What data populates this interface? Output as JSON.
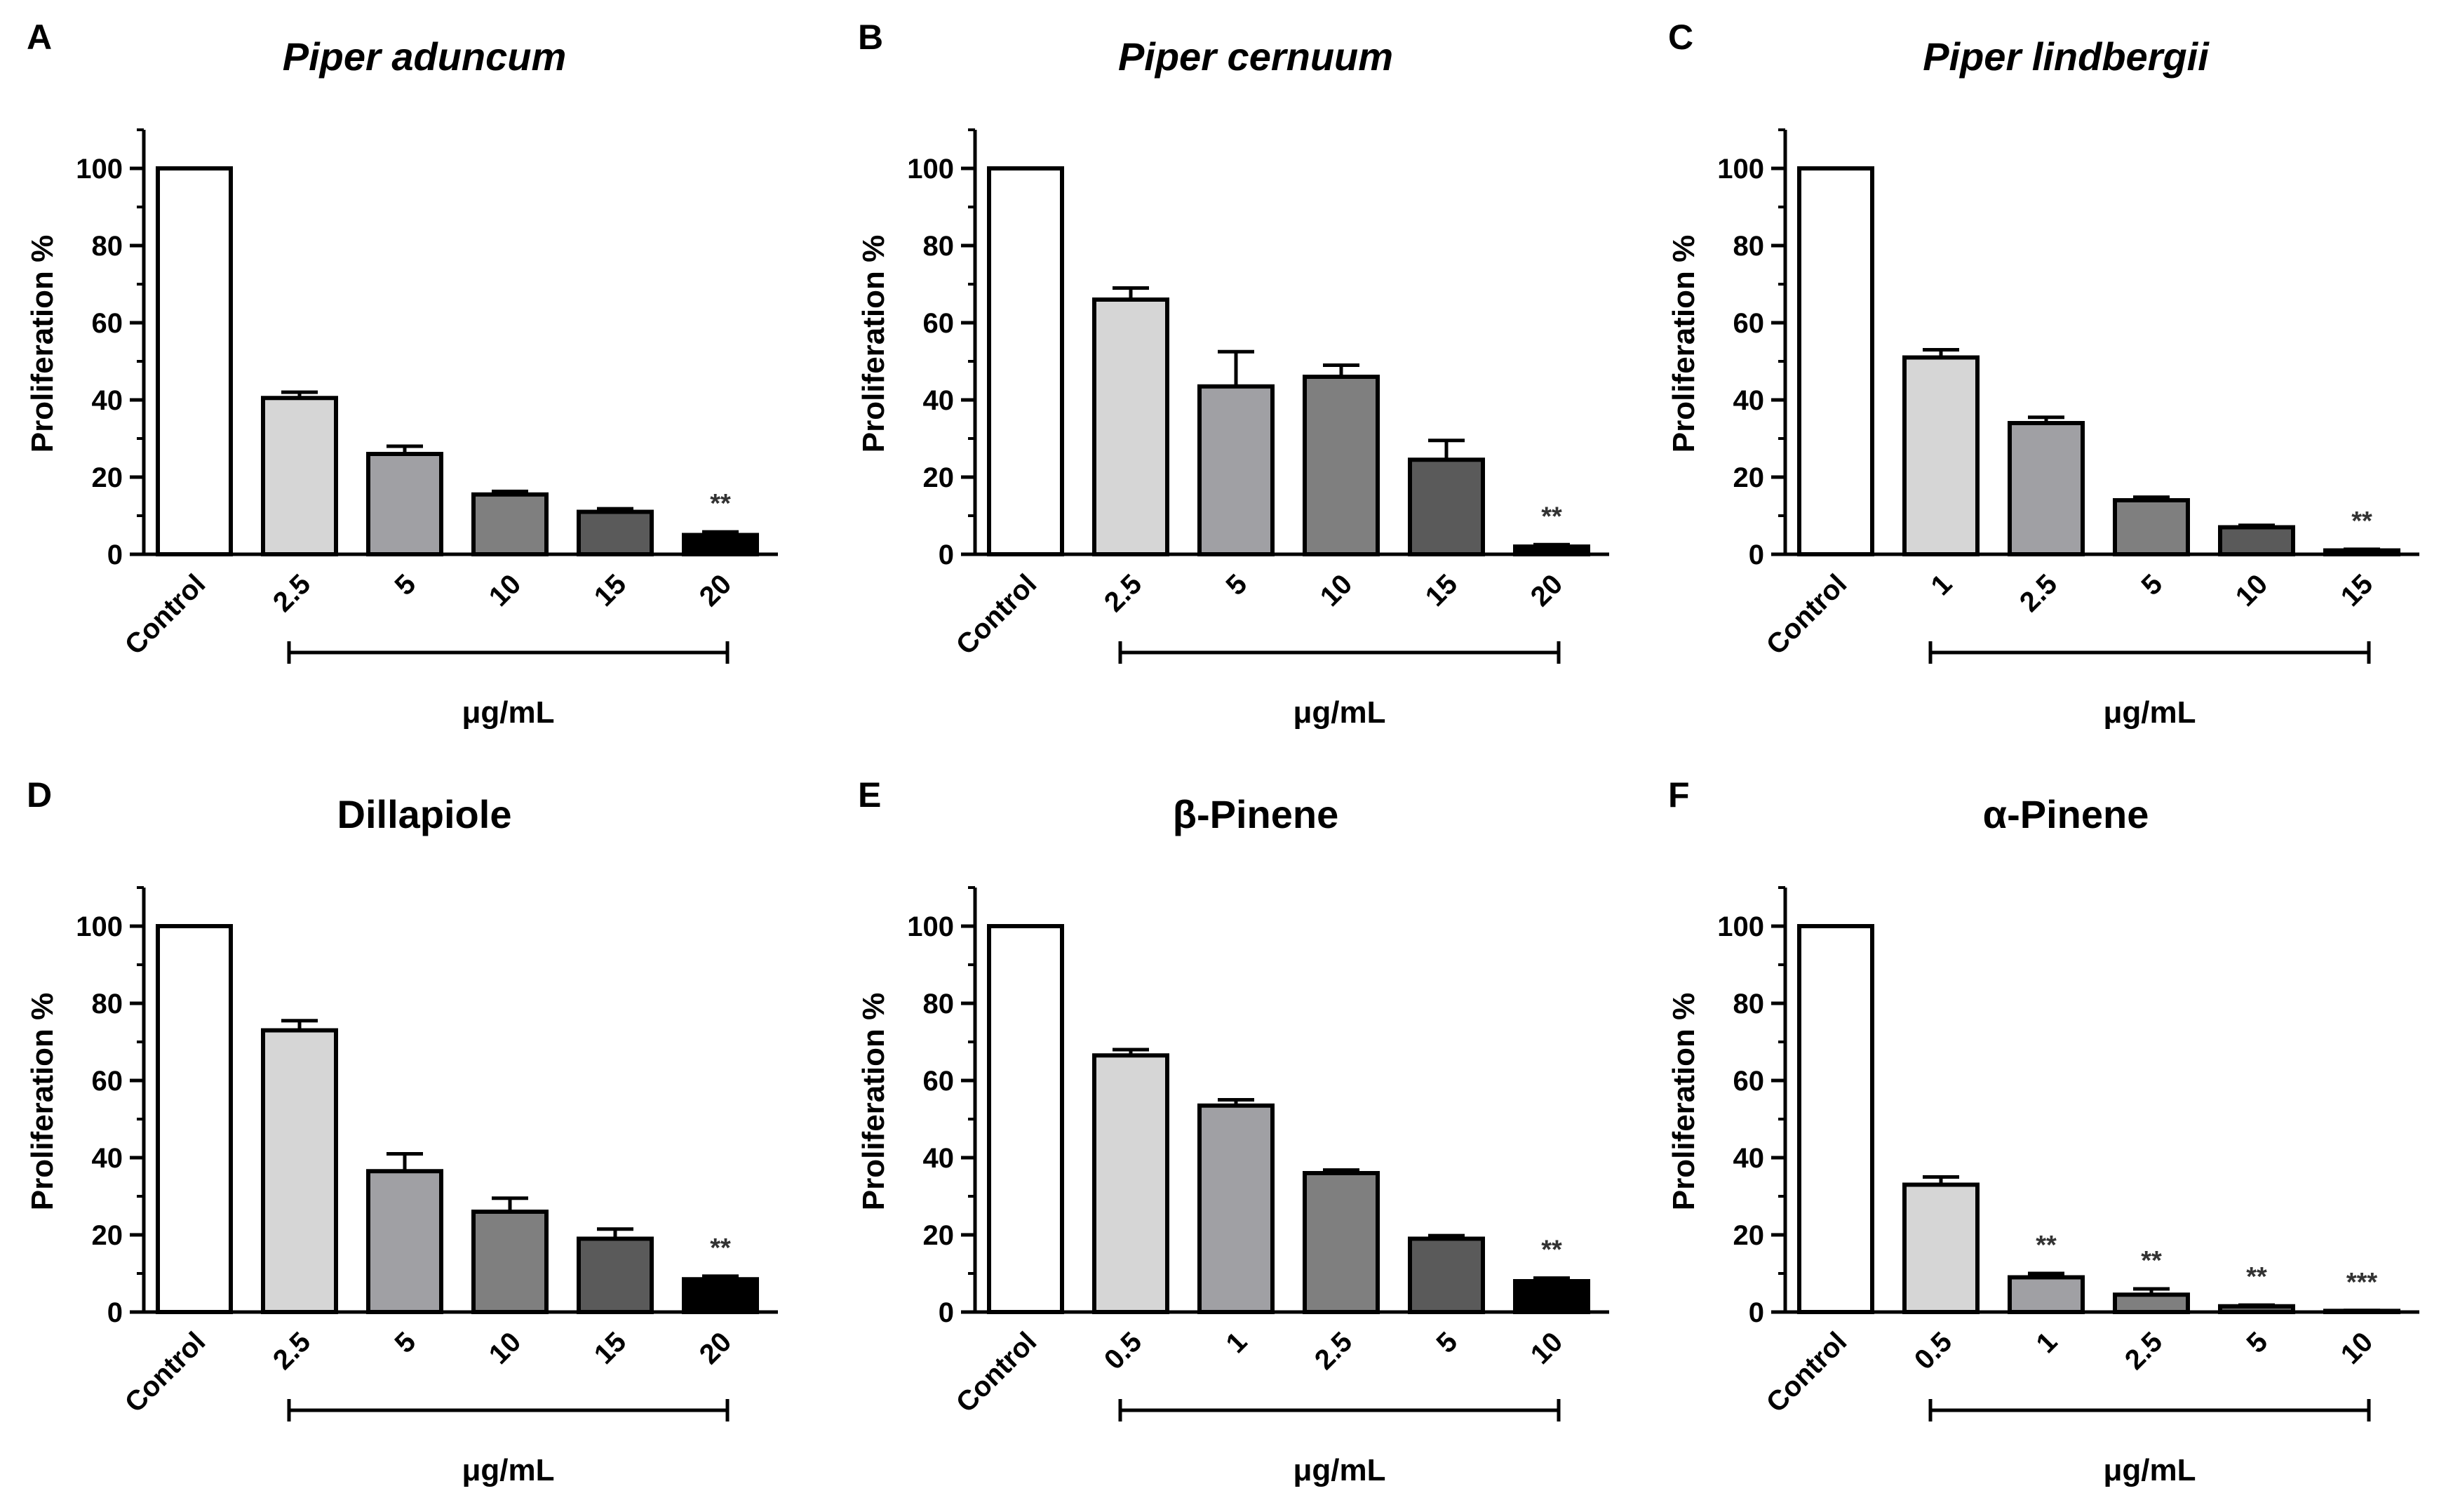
{
  "chart_data": [
    {
      "type": "bar",
      "panel": "A",
      "title": "Piper aduncum",
      "title_italic": true,
      "ylabel": "Proliferation %",
      "xlabel": "μg/mL",
      "ylim": [
        0,
        110
      ],
      "yticks": [
        0,
        20,
        40,
        60,
        80,
        100
      ],
      "categories": [
        "Control",
        "2.5",
        "5",
        "10",
        "15",
        "20"
      ],
      "values": [
        100,
        40.5,
        26,
        15.5,
        11,
        5
      ],
      "errors": [
        0,
        1.5,
        2,
        0.8,
        0.8,
        0.8
      ],
      "annotations": [
        "",
        "",
        "",
        "",
        "",
        "**"
      ],
      "colors": [
        "#ffffff",
        "#d6d6d6",
        "#a0a0a4",
        "#7f7f7f",
        "#5a5a5a",
        "#000000"
      ]
    },
    {
      "type": "bar",
      "panel": "B",
      "title": "Piper cernuum",
      "title_italic": true,
      "ylabel": "Proliferation %",
      "xlabel": "μg/mL",
      "ylim": [
        0,
        110
      ],
      "yticks": [
        0,
        20,
        40,
        60,
        80,
        100
      ],
      "categories": [
        "Control",
        "2.5",
        "5",
        "10",
        "15",
        "20"
      ],
      "values": [
        100,
        66,
        43.5,
        46,
        24.5,
        2
      ],
      "errors": [
        0,
        3,
        9,
        3,
        5,
        0.5
      ],
      "annotations": [
        "",
        "",
        "",
        "",
        "",
        "**"
      ],
      "colors": [
        "#ffffff",
        "#d6d6d6",
        "#a0a0a4",
        "#7f7f7f",
        "#5a5a5a",
        "#000000"
      ]
    },
    {
      "type": "bar",
      "panel": "C",
      "title": "Piper lindbergii",
      "title_italic": true,
      "ylabel": "Proliferation %",
      "xlabel": "μg/mL",
      "ylim": [
        0,
        110
      ],
      "yticks": [
        0,
        20,
        40,
        60,
        80,
        100
      ],
      "categories": [
        "Control",
        "1",
        "2.5",
        "5",
        "10",
        "15"
      ],
      "values": [
        100,
        51,
        34,
        14,
        7,
        1
      ],
      "errors": [
        0,
        2,
        1.5,
        0.8,
        0.5,
        0.3
      ],
      "annotations": [
        "",
        "",
        "",
        "",
        "",
        "**"
      ],
      "colors": [
        "#ffffff",
        "#d6d6d6",
        "#a0a0a4",
        "#7f7f7f",
        "#5a5a5a",
        "#000000"
      ]
    },
    {
      "type": "bar",
      "panel": "D",
      "title": "Dillapiole",
      "title_italic": false,
      "ylabel": "Proliferation %",
      "xlabel": "μg/mL",
      "ylim": [
        0,
        110
      ],
      "yticks": [
        0,
        20,
        40,
        60,
        80,
        100
      ],
      "categories": [
        "Control",
        "2.5",
        "5",
        "10",
        "15",
        "20"
      ],
      "values": [
        100,
        73,
        36.5,
        26,
        19,
        8.5
      ],
      "errors": [
        0,
        2.5,
        4.5,
        3.5,
        2.5,
        0.8
      ],
      "annotations": [
        "",
        "",
        "",
        "",
        "",
        "**"
      ],
      "colors": [
        "#ffffff",
        "#d6d6d6",
        "#a0a0a4",
        "#7f7f7f",
        "#5a5a5a",
        "#000000"
      ]
    },
    {
      "type": "bar",
      "panel": "E",
      "title": "β-Pinene",
      "title_italic": false,
      "ylabel": "Proliferation %",
      "xlabel": "μg/mL",
      "ylim": [
        0,
        110
      ],
      "yticks": [
        0,
        20,
        40,
        60,
        80,
        100
      ],
      "categories": [
        "Control",
        "0.5",
        "1",
        "2.5",
        "5",
        "10"
      ],
      "values": [
        100,
        66.5,
        53.5,
        36,
        19,
        8
      ],
      "errors": [
        0,
        1.5,
        1.5,
        0.8,
        0.8,
        0.8
      ],
      "annotations": [
        "",
        "",
        "",
        "",
        "",
        "**"
      ],
      "colors": [
        "#ffffff",
        "#d6d6d6",
        "#a0a0a4",
        "#7f7f7f",
        "#5a5a5a",
        "#000000"
      ]
    },
    {
      "type": "bar",
      "panel": "F",
      "title": "α-Pinene",
      "title_italic": false,
      "ylabel": "Proliferation %",
      "xlabel": "μg/mL",
      "ylim": [
        0,
        110
      ],
      "yticks": [
        0,
        20,
        40,
        60,
        80,
        100
      ],
      "categories": [
        "Control",
        "0.5",
        "1",
        "2.5",
        "5",
        "10"
      ],
      "values": [
        100,
        33,
        9,
        4.5,
        1.5,
        0.3
      ],
      "errors": [
        0,
        2,
        1,
        1.5,
        0.3,
        0.1
      ],
      "annotations": [
        "",
        "",
        "**",
        "**",
        "**",
        "***"
      ],
      "colors": [
        "#ffffff",
        "#d6d6d6",
        "#a0a0a4",
        "#7f7f7f",
        "#5a5a5a",
        "#000000"
      ]
    }
  ]
}
